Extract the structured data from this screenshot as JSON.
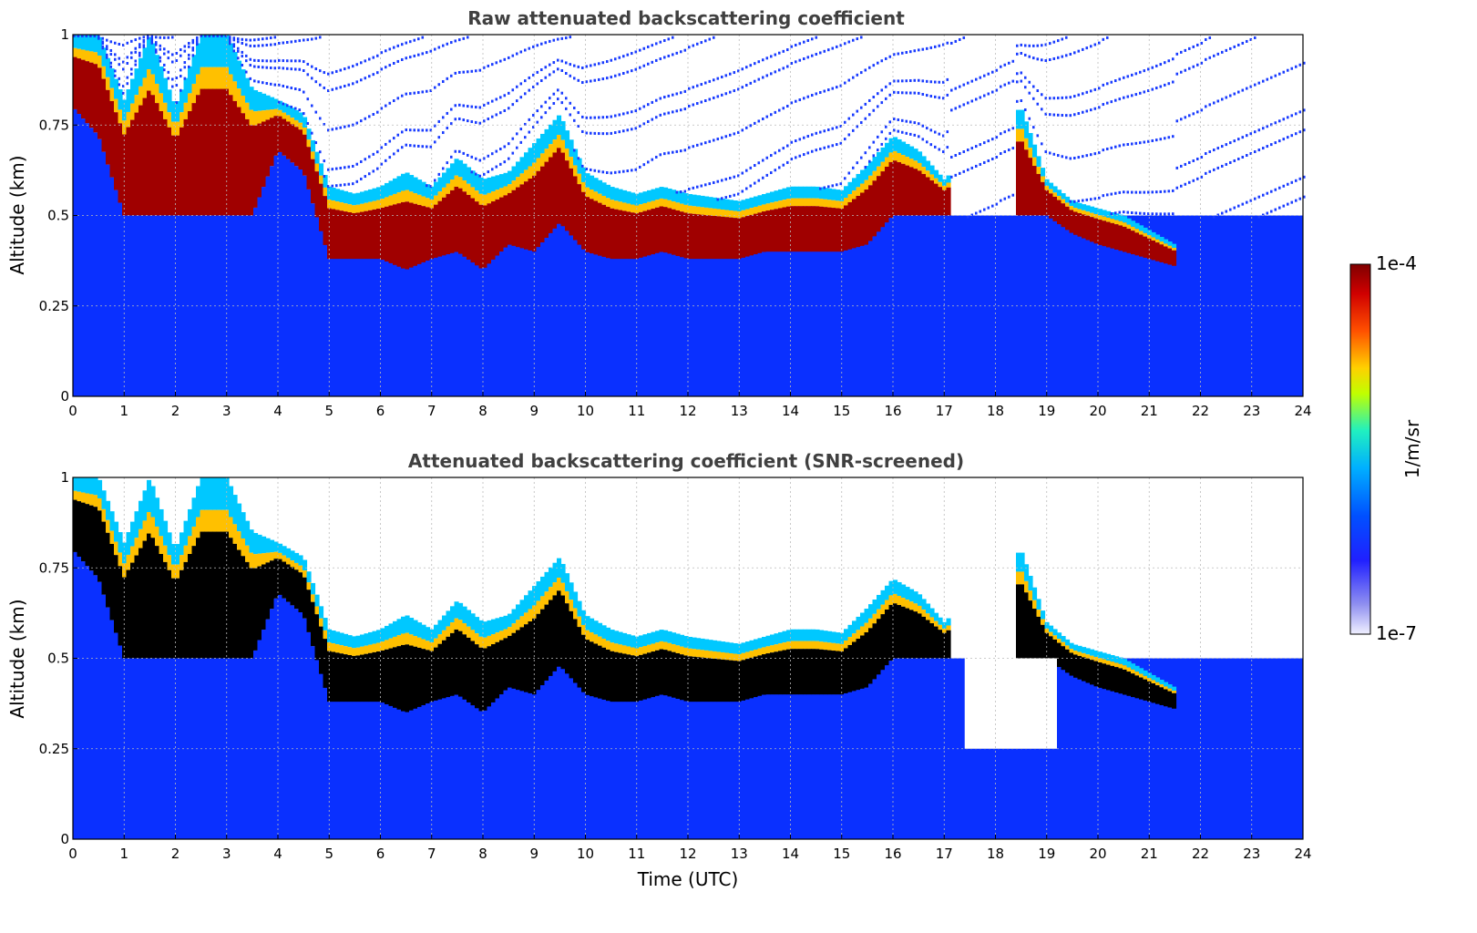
{
  "chart_data": [
    {
      "type": "heatmap",
      "title": "Raw attenuated backscattering coefficient",
      "xlabel": "",
      "ylabel": "Altitude (km)",
      "xlim": [
        0,
        24
      ],
      "ylim": [
        0,
        1
      ],
      "x_ticks": [
        "0",
        "1",
        "2",
        "3",
        "4",
        "5",
        "6",
        "7",
        "8",
        "9",
        "10",
        "11",
        "12",
        "13",
        "14",
        "15",
        "16",
        "17",
        "18",
        "19",
        "20",
        "21",
        "22",
        "23",
        "24"
      ],
      "y_ticks": [
        "0",
        "0.25",
        "0.5",
        "0.75",
        "1"
      ],
      "grid": true,
      "layer_base_km": {
        "x_hours": [
          0,
          0.5,
          1,
          1.5,
          2,
          2.5,
          3,
          3.5,
          4,
          4.5,
          5,
          5.5,
          6,
          6.5,
          7,
          7.5,
          8,
          8.5,
          9,
          9.5,
          10,
          10.5,
          11,
          11.5,
          12,
          12.5,
          13,
          13.5,
          14,
          14.5,
          15,
          15.5,
          16,
          16.5,
          17,
          18.5,
          19,
          19.5,
          20,
          20.5,
          21,
          21.5
        ],
        "values": [
          0.8,
          0.72,
          0.5,
          0.5,
          0.5,
          0.5,
          0.5,
          0.5,
          0.68,
          0.62,
          0.38,
          0.38,
          0.38,
          0.35,
          0.38,
          0.4,
          0.35,
          0.42,
          0.4,
          0.48,
          0.4,
          0.38,
          0.38,
          0.4,
          0.38,
          0.38,
          0.38,
          0.4,
          0.4,
          0.4,
          0.4,
          0.42,
          0.5,
          0.5,
          0.5,
          0.5,
          0.5,
          0.45,
          0.42,
          0.4,
          0.38,
          0.36
        ]
      },
      "layer_top_km": {
        "x_hours": [
          0,
          0.5,
          1,
          1.5,
          2,
          2.5,
          3,
          3.5,
          4,
          4.5,
          5,
          5.5,
          6,
          6.5,
          7,
          7.5,
          8,
          8.5,
          9,
          9.5,
          10,
          10.5,
          11,
          11.5,
          12,
          12.5,
          13,
          13.5,
          14,
          14.5,
          15,
          15.5,
          16,
          16.5,
          17,
          18.5,
          19,
          19.5,
          20,
          20.5,
          21,
          21.5
        ],
        "values": [
          1,
          1,
          0.82,
          1,
          0.8,
          1,
          1,
          0.85,
          0.82,
          0.78,
          0.58,
          0.56,
          0.58,
          0.62,
          0.58,
          0.66,
          0.6,
          0.62,
          0.7,
          0.78,
          0.62,
          0.58,
          0.56,
          0.58,
          0.56,
          0.55,
          0.54,
          0.56,
          0.58,
          0.58,
          0.57,
          0.64,
          0.72,
          0.68,
          0.6,
          0.8,
          0.6,
          0.54,
          0.52,
          0.5,
          0.46,
          0.42
        ]
      }
    },
    {
      "type": "heatmap",
      "title": "Attenuated backscattering coefficient (SNR-screened)",
      "xlabel": "Time (UTC)",
      "ylabel": "Altitude (km)",
      "xlim": [
        0,
        24
      ],
      "ylim": [
        0,
        1
      ],
      "x_ticks": [
        "0",
        "1",
        "2",
        "3",
        "4",
        "5",
        "6",
        "7",
        "8",
        "9",
        "10",
        "11",
        "12",
        "13",
        "14",
        "15",
        "16",
        "17",
        "18",
        "19",
        "20",
        "21",
        "22",
        "23",
        "24"
      ],
      "y_ticks": [
        "0",
        "0.25",
        "0.5",
        "0.75",
        "1"
      ],
      "grid": true,
      "screened_gap": {
        "start_hour": 17.4,
        "end_hour": 19.2,
        "floor_km": 0.25
      }
    }
  ],
  "colorbar": {
    "label": "1/m/sr",
    "max_label": "1e-4",
    "min_label": "1e-7",
    "colormap": [
      "#f0f0ff",
      "#9090f0",
      "#2020ff",
      "#0050ff",
      "#00b0ff",
      "#20f0c0",
      "#c0ff00",
      "#ffd000",
      "#ff5000",
      "#d00000",
      "#800000"
    ]
  }
}
